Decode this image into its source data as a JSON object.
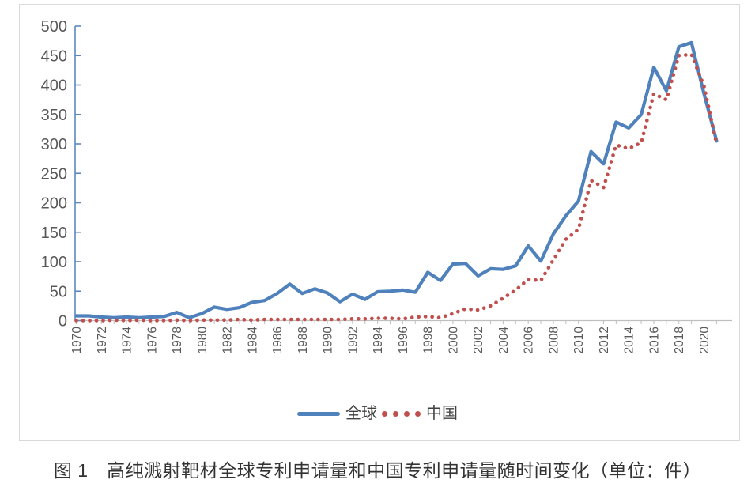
{
  "chart_data": {
    "type": "line",
    "title": "",
    "xlabel": "",
    "ylabel": "",
    "x": [
      1970,
      1971,
      1972,
      1973,
      1974,
      1975,
      1976,
      1977,
      1978,
      1979,
      1980,
      1981,
      1982,
      1983,
      1984,
      1985,
      1986,
      1987,
      1988,
      1989,
      1990,
      1991,
      1992,
      1993,
      1994,
      1995,
      1996,
      1997,
      1998,
      1999,
      2000,
      2001,
      2002,
      2003,
      2004,
      2005,
      2006,
      2007,
      2008,
      2009,
      2010,
      2011,
      2012,
      2013,
      2014,
      2015,
      2016,
      2017,
      2018,
      2019,
      2020,
      2021
    ],
    "series": [
      {
        "name": "全球",
        "style": "solid",
        "color": "#4F81BD",
        "values": [
          8,
          8,
          6,
          5,
          6,
          5,
          6,
          7,
          14,
          5,
          12,
          23,
          19,
          22,
          31,
          34,
          46,
          62,
          46,
          54,
          47,
          32,
          45,
          36,
          49,
          50,
          52,
          48,
          82,
          68,
          96,
          97,
          76,
          88,
          87,
          93,
          127,
          101,
          147,
          178,
          203,
          287,
          266,
          337,
          327,
          350,
          430,
          390,
          465,
          472,
          385,
          305
        ]
      },
      {
        "name": "中国",
        "style": "dotted",
        "color": "#C0504D",
        "values": [
          0,
          0,
          0,
          1,
          0,
          1,
          0,
          0,
          1,
          0,
          1,
          1,
          1,
          2,
          1,
          2,
          2,
          2,
          2,
          2,
          2,
          2,
          3,
          3,
          4,
          4,
          3,
          6,
          7,
          5,
          12,
          20,
          18,
          25,
          38,
          52,
          70,
          68,
          103,
          138,
          155,
          238,
          226,
          298,
          292,
          302,
          385,
          375,
          450,
          452,
          398,
          300
        ]
      }
    ],
    "ylim": [
      0,
      500
    ],
    "yticks": [
      0,
      50,
      100,
      150,
      200,
      250,
      300,
      350,
      400,
      450,
      500
    ],
    "xtick_labels": [
      "1970",
      "1972",
      "1974",
      "1976",
      "1978",
      "1980",
      "1982",
      "1984",
      "1986",
      "1988",
      "1990",
      "1992",
      "1994",
      "1996",
      "1998",
      "2000",
      "2002",
      "2004",
      "2006",
      "2008",
      "2010",
      "2012",
      "2014",
      "2016",
      "2018",
      "2020"
    ],
    "grid": false,
    "legend_position": "bottom",
    "axis_colors": {
      "y_axis": "#5B87C0",
      "x_axis": "#BFBFBF",
      "tick_label": "#595959"
    }
  },
  "legend": {
    "items": [
      {
        "label": "全球",
        "swatch": "solid-line",
        "color": "#4F81BD"
      },
      {
        "label": "中国",
        "swatch": "dotted-line",
        "color": "#C0504D"
      }
    ]
  },
  "caption": "图 1　高纯溅射靶材全球专利申请量和中国专利申请量随时间变化（单位：件）"
}
